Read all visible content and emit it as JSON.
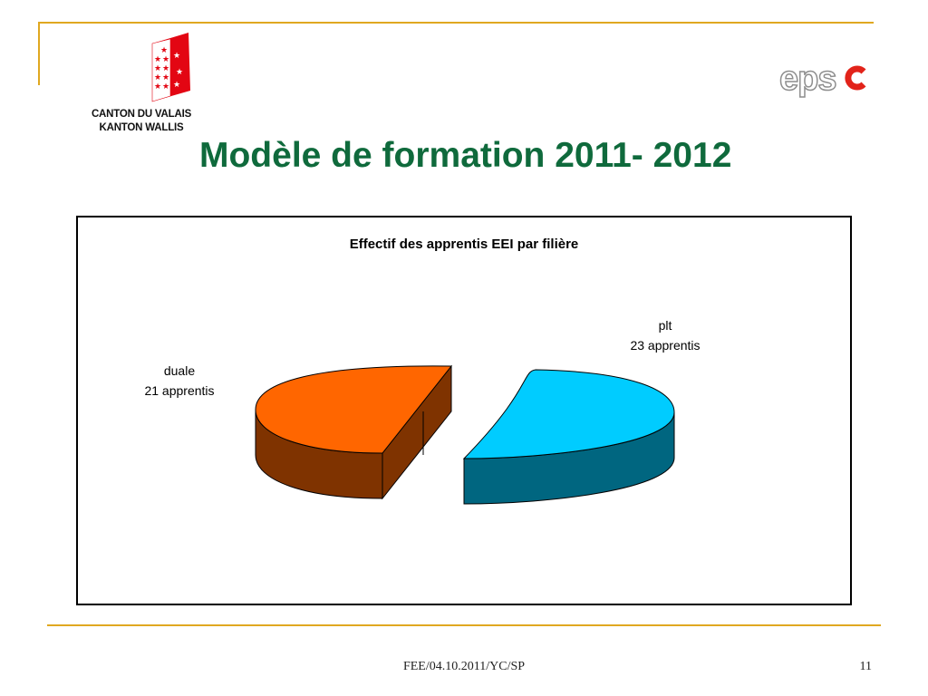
{
  "header": {
    "canton_line1": "CANTON DU VALAIS",
    "canton_line2": "KANTON WALLIS",
    "brand_logo": "epsc",
    "title": "Modèle de formation 2011- 2012"
  },
  "footer": {
    "text": "FEE/04.10.2011/YC/SP",
    "page_number": "11"
  },
  "colors": {
    "accent_gold": "#e0a820",
    "title_green": "#0f6a3c",
    "epsc_red": "#e2231a"
  },
  "chart_data": {
    "type": "pie",
    "title": "Effectif des apprentis EEI par filière",
    "slices": [
      {
        "category": "duale",
        "value": 21,
        "value_label": "21 apprentis",
        "top_color": "#ff6600",
        "side_color": "#7f3300"
      },
      {
        "category": "plt",
        "value": 23,
        "value_label": "23 apprentis",
        "top_color": "#00ccff",
        "side_color": "#006680"
      }
    ],
    "three_d": true,
    "exploded": true,
    "legend": "none"
  }
}
